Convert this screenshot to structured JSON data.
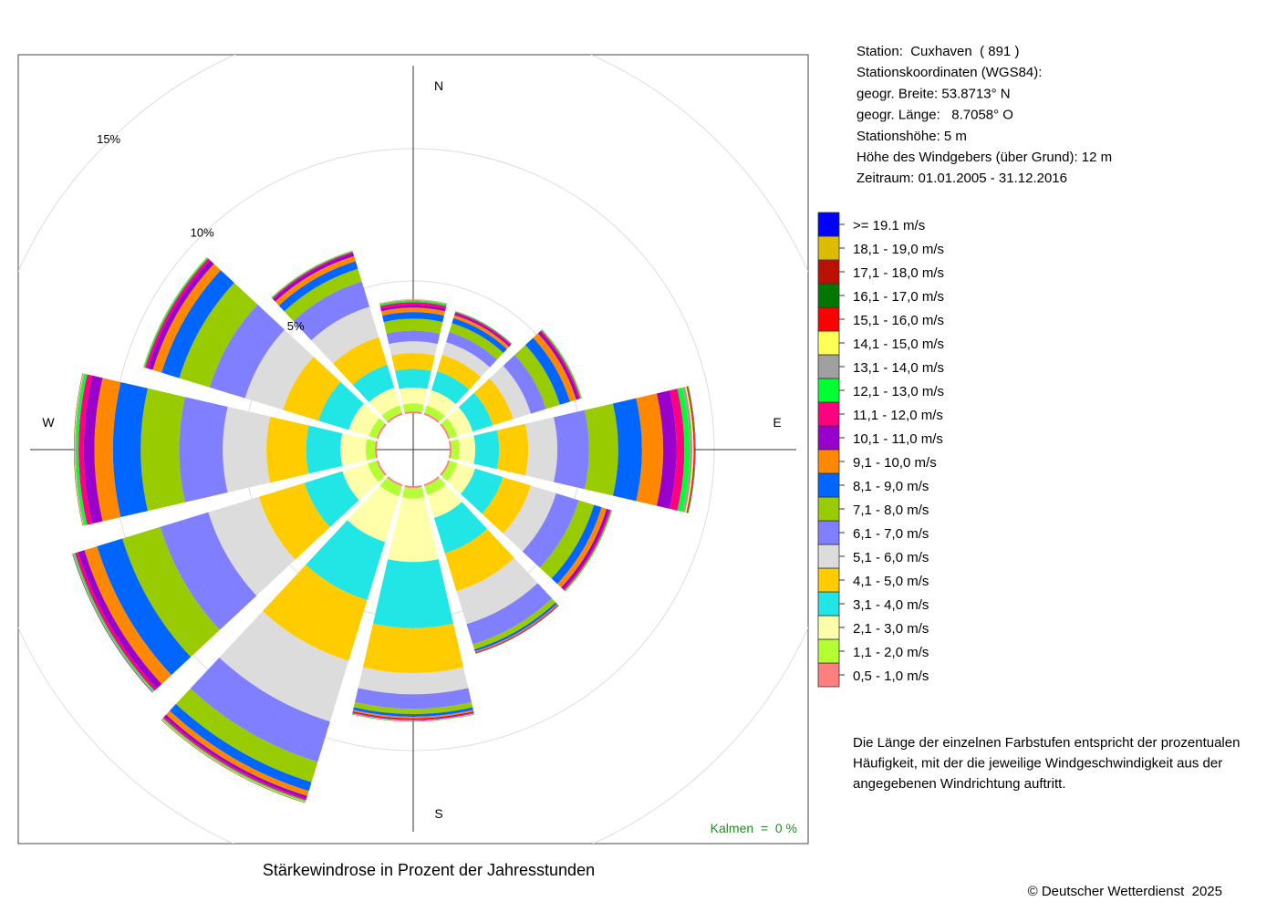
{
  "chart_data": {
    "type": "windrose",
    "title": "Stärkewindrose in Prozent der Jahresstunden",
    "compass_labels": [
      "N",
      "E",
      "S",
      "W"
    ],
    "rlim": [
      0,
      15
    ],
    "rticks": [
      {
        "value": 5,
        "label": "5%"
      },
      {
        "value": 10,
        "label": "10%"
      },
      {
        "value": 15,
        "label": "15%"
      }
    ],
    "grid": true,
    "calm_label": "Kalmen  =  0 %",
    "series": [
      {
        "name": "0,5 - 1,0 m/s",
        "color": "#ff7f7f",
        "values": [
          0.07,
          0.07,
          0.07,
          0.07,
          0.07,
          0.07,
          0.07,
          0.07,
          0.07,
          0.07,
          0.07,
          0.07
        ]
      },
      {
        "name": "1,1 - 2,0 m/s",
        "color": "#b3ff33",
        "values": [
          0.3,
          0.3,
          0.3,
          0.3,
          0.3,
          0.35,
          0.4,
          0.4,
          0.35,
          0.35,
          0.3,
          0.3
        ]
      },
      {
        "name": "2,1 - 3,0 m/s",
        "color": "#ffffaa",
        "values": [
          0.6,
          0.6,
          0.6,
          0.6,
          0.7,
          0.9,
          2.4,
          1.8,
          1.0,
          0.95,
          0.8,
          0.7
        ]
      },
      {
        "name": "3,1 - 4,0 m/s",
        "color": "#22e5e5",
        "values": [
          0.7,
          0.75,
          0.8,
          0.9,
          1.1,
          1.4,
          2.5,
          2.3,
          1.5,
          1.3,
          1.2,
          0.9
        ]
      },
      {
        "name": "4,1 - 5,0 m/s",
        "color": "#ffcc00",
        "values": [
          0.6,
          0.65,
          0.8,
          1.1,
          1.1,
          1.5,
          1.7,
          2.4,
          1.8,
          1.5,
          1.4,
          1.1
        ]
      },
      {
        "name": "5,1 - 6,0 m/s",
        "color": "#dcdcdc",
        "values": [
          0.45,
          0.5,
          0.7,
          1.1,
          1.0,
          1.3,
          0.8,
          2.4,
          2.0,
          1.65,
          1.5,
          1.2
        ]
      },
      {
        "name": "6,1 - 7,0 m/s",
        "color": "#7f7fff",
        "values": [
          0.4,
          0.4,
          0.6,
          1.2,
          0.9,
          0.8,
          0.55,
          1.6,
          1.9,
          1.65,
          1.4,
          1.0
        ]
      },
      {
        "name": "7,1 - 8,0 m/s",
        "color": "#99cc00",
        "values": [
          0.45,
          0.35,
          0.55,
          1.1,
          0.6,
          0.2,
          0.2,
          0.8,
          1.5,
          1.45,
          1.2,
          0.5
        ]
      },
      {
        "name": "8,1 - 9,0 m/s",
        "color": "#0066ff",
        "values": [
          0.25,
          0.2,
          0.4,
          0.9,
          0.3,
          0.08,
          0.1,
          0.35,
          1.0,
          1.05,
          0.7,
          0.3
        ]
      },
      {
        "name": "9,1 - 10,0 m/s",
        "color": "#ff8800",
        "values": [
          0.17,
          0.12,
          0.25,
          0.8,
          0.2,
          0.05,
          0.06,
          0.2,
          0.5,
          0.7,
          0.35,
          0.2
        ]
      },
      {
        "name": "10,1 - 11,0 m/s",
        "color": "#9900cc",
        "values": [
          0.1,
          0.07,
          0.1,
          0.5,
          0.1,
          0.03,
          0.04,
          0.1,
          0.25,
          0.4,
          0.2,
          0.12
        ]
      },
      {
        "name": "11,1 - 12,0 m/s",
        "color": "#ff0080",
        "values": [
          0.1,
          0.05,
          0.06,
          0.3,
          0.06,
          0.01,
          0.03,
          0.07,
          0.12,
          0.2,
          0.1,
          0.05
        ]
      },
      {
        "name": "12,1 - 13,0 m/s",
        "color": "#00ff33",
        "values": [
          0.07,
          0.03,
          0.04,
          0.2,
          0.04,
          0.01,
          0.02,
          0.04,
          0.05,
          0.1,
          0.05,
          0.03
        ]
      },
      {
        "name": "13,1 - 14,0 m/s",
        "color": "#a0a0a0",
        "values": [
          0.02,
          0.01,
          0.02,
          0.1,
          0.02,
          0,
          0.01,
          0.02,
          0.02,
          0.04,
          0.02,
          0.02
        ]
      },
      {
        "name": "14,1 - 15,0 m/s",
        "color": "#ffff55",
        "values": [
          0.01,
          0,
          0.01,
          0.05,
          0.01,
          0,
          0.01,
          0.02,
          0.01,
          0.02,
          0.01,
          0.01
        ]
      },
      {
        "name": "15,1 - 16,0 m/s",
        "color": "#ff0000",
        "values": [
          0.01,
          0,
          0,
          0.03,
          0,
          0,
          0.01,
          0.01,
          0.01,
          0.01,
          0,
          0
        ]
      },
      {
        "name": "16,1 - 17,0 m/s",
        "color": "#007700",
        "values": [
          0,
          0,
          0,
          0.02,
          0,
          0,
          0,
          0.01,
          0.01,
          0.01,
          0,
          0
        ]
      },
      {
        "name": "17,1 - 18,0 m/s",
        "color": "#bb1100",
        "values": [
          0,
          0,
          0,
          0.01,
          0,
          0,
          0,
          0.005,
          0,
          0,
          0,
          0
        ]
      },
      {
        "name": "18,1 - 19,0 m/s",
        "color": "#ddbb00",
        "values": [
          0,
          0,
          0,
          0.01,
          0,
          0,
          0,
          0.005,
          0,
          0,
          0,
          0
        ]
      },
      {
        "name": ">= 19.1 m/s",
        "color": "#0000ff",
        "values": [
          0,
          0,
          0,
          0.01,
          0,
          0,
          0,
          0,
          0.01,
          0,
          0,
          0
        ]
      }
    ]
  },
  "info": [
    "Station:  Cuxhaven  ( 891 )",
    "Stationskoordinaten (WGS84):",
    "geogr. Breite: 53.8713° N",
    "geogr. Länge:   8.7058° O",
    "Stationshöhe: 5 m",
    "Höhe des Windgebers (über Grund): 12 m",
    "Zeitraum: 01.01.2005 - 31.12.2016"
  ],
  "note": [
    "Die Länge der einzelnen Farbstufen entspricht der prozentualen",
    "Häufigkeit, mit der die jeweilige Windgeschwindigkeit aus der",
    "angegebenen Windrichtung auftritt."
  ],
  "copyright": "© Deutscher Wetterdienst  2025"
}
